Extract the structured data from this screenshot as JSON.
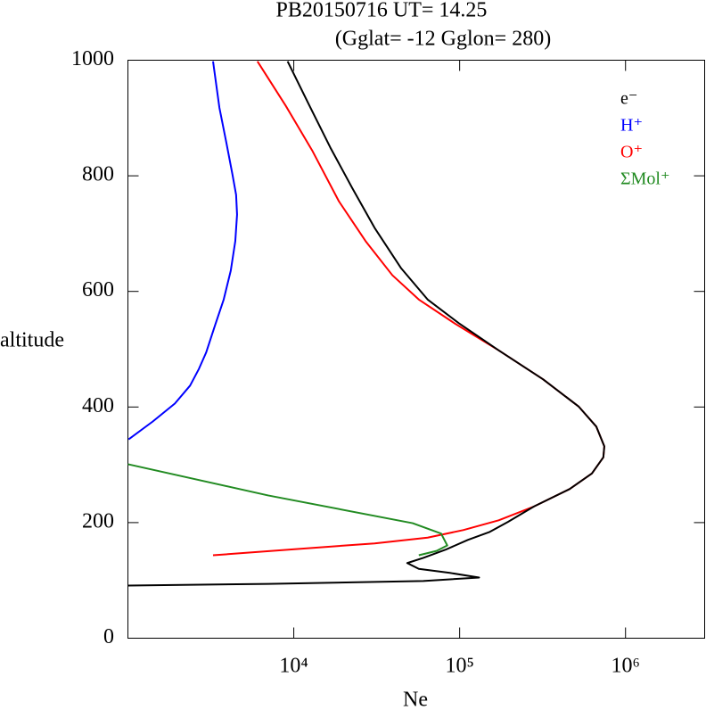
{
  "chart_data": {
    "type": "line",
    "title": "PB20150716   UT=  14.25",
    "subtitle": "(Gglat= -12   Gglon=  280)",
    "x_label": "Ne",
    "y_label": "altitude",
    "x_scale": "log",
    "xlim": [
      1000,
      3000000
    ],
    "ylim": [
      0,
      1000
    ],
    "xticks": [
      {
        "value": 10000,
        "label": "10⁴"
      },
      {
        "value": 100000,
        "label": "10⁵"
      },
      {
        "value": 1000000,
        "label": "10⁶"
      }
    ],
    "yticks": [
      0,
      200,
      400,
      600,
      800,
      1000
    ],
    "legend": "upper right",
    "series": [
      {
        "name": "e⁻",
        "color": "#000000",
        "x": [
          1000,
          7000,
          60400,
          131000,
          87300,
          56700,
          48300,
          60400,
          82000,
          112000,
          152000,
          195000,
          281000,
          460000,
          627000,
          735000,
          745000,
          667000,
          521000,
          318000,
          172000,
          98800,
          64100,
          44400,
          30700,
          22500,
          16600,
          12200,
          9180
        ],
        "values": [
          91,
          94,
          99,
          105,
          113,
          120,
          130,
          139,
          153,
          170,
          184,
          201,
          228,
          258,
          285,
          313,
          332,
          366,
          401,
          448,
          498,
          545,
          586,
          640,
          710,
          779,
          849,
          926,
          998
        ]
      },
      {
        "name": "H⁺",
        "color": "#0000ff",
        "x": [
          1010,
          1413,
          1920,
          2370,
          2680,
          2960,
          3340,
          3780,
          4170,
          4440,
          4550,
          4490,
          4270,
          3930,
          3560,
          3260
        ],
        "values": [
          344,
          375,
          406,
          437,
          466,
          494,
          540,
          586,
          636,
          687,
          733,
          767,
          802,
          856,
          918,
          998
        ]
      },
      {
        "name": "O⁺",
        "color": "#ff0000",
        "x": [
          3260,
          10100,
          30700,
          64100,
          105000,
          172000,
          281000,
          460000,
          627000,
          735000,
          745000,
          667000,
          521000,
          318000,
          172000,
          92900,
          56700,
          39300,
          27100,
          18700,
          12900,
          8950,
          6040
        ],
        "values": [
          143.5,
          154,
          164,
          174,
          187,
          204,
          228,
          258,
          285,
          313,
          332,
          366,
          401,
          448,
          498,
          545,
          586,
          628,
          687,
          756,
          844,
          921,
          998
        ]
      },
      {
        "name": "ΣMol⁺",
        "color": "#228b22",
        "x": [
          1000,
          7000,
          52100,
          77300,
          84200,
          72600,
          56700
        ],
        "values": [
          301,
          247,
          199,
          181,
          160.5,
          151,
          143.5
        ]
      }
    ]
  }
}
